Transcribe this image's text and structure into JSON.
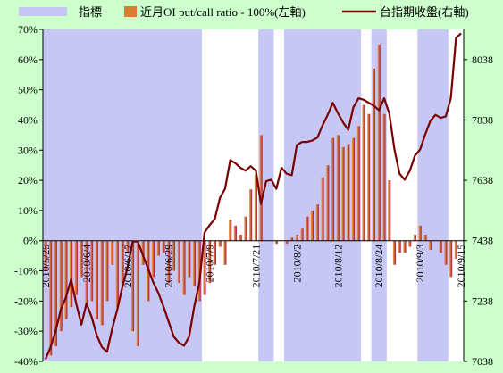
{
  "chart_data": {
    "type": "bar",
    "legend": [
      {
        "label": "指標",
        "kind": "band",
        "color": "#C7C7F5"
      },
      {
        "label": "近月OI put/call ratio - 100%(左軸)",
        "kind": "bar",
        "color": "#E07A30"
      },
      {
        "label": "台指期收盤(右軸)",
        "kind": "line",
        "color": "#7A0000"
      }
    ],
    "y_left": {
      "ticks": [
        "-40%",
        "-30%",
        "-20%",
        "-10%",
        "0%",
        "10%",
        "20%",
        "30%",
        "40%",
        "50%",
        "60%",
        "70%"
      ],
      "min": -40,
      "max": 70
    },
    "y_right": {
      "ticks": [
        "7038",
        "7238",
        "7438",
        "7638",
        "7838",
        "8038"
      ],
      "min": 7038,
      "max": 8138
    },
    "x_labels": [
      "2010/5/25",
      "2010/6/4",
      "2010/6/17",
      "2010/6/29",
      "2010/7/9",
      "2010/7/21",
      "2010/8/2",
      "2010/8/12",
      "2010/8/24",
      "2010/9/3",
      "2010/9/15"
    ],
    "n_points": 82,
    "bands": [
      [
        0,
        30
      ],
      [
        42,
        44
      ],
      [
        47,
        61
      ],
      [
        64,
        66
      ],
      [
        73,
        78
      ]
    ],
    "bars": [
      -10,
      -38,
      -35,
      -30,
      -26,
      -22,
      -18,
      -12,
      -22,
      -20,
      -26,
      -28,
      -20,
      -8,
      -22,
      -14,
      -4,
      -30,
      -35,
      -8,
      -20,
      -12,
      -5,
      -4,
      -14,
      -10,
      -14,
      -18,
      -12,
      -15,
      -20,
      -18,
      -14,
      -8,
      -2,
      -8,
      7,
      5,
      2,
      8,
      17,
      22,
      35,
      0,
      0,
      -1,
      0,
      -1,
      1,
      2,
      4,
      8,
      10,
      12,
      21,
      25,
      34,
      35,
      31,
      32,
      34,
      38,
      45,
      42,
      57,
      65,
      42,
      20,
      -8,
      -4,
      -4,
      -2,
      2,
      5,
      2,
      -3,
      0,
      -4,
      -8,
      -12,
      -6,
      0
    ],
    "line": [
      7045,
      7085,
      7140,
      7210,
      7250,
      7310,
      7230,
      7160,
      7230,
      7185,
      7125,
      7085,
      7070,
      7145,
      7210,
      7285,
      7350,
      7435,
      7435,
      7390,
      7345,
      7300,
      7265,
      7220,
      7170,
      7120,
      7100,
      7090,
      7120,
      7220,
      7300,
      7465,
      7490,
      7510,
      7580,
      7610,
      7705,
      7695,
      7680,
      7670,
      7685,
      7670,
      7560,
      7635,
      7640,
      7610,
      7680,
      7660,
      7655,
      7755,
      7765,
      7765,
      7770,
      7780,
      7820,
      7855,
      7895,
      7860,
      7830,
      7805,
      7880,
      7910,
      7905,
      7895,
      7885,
      7870,
      7910,
      7860,
      7740,
      7660,
      7640,
      7670,
      7720,
      7740,
      7790,
      7835,
      7855,
      7845,
      7850,
      7910,
      8110,
      8125
    ],
    "left_axis_unit": "%"
  }
}
